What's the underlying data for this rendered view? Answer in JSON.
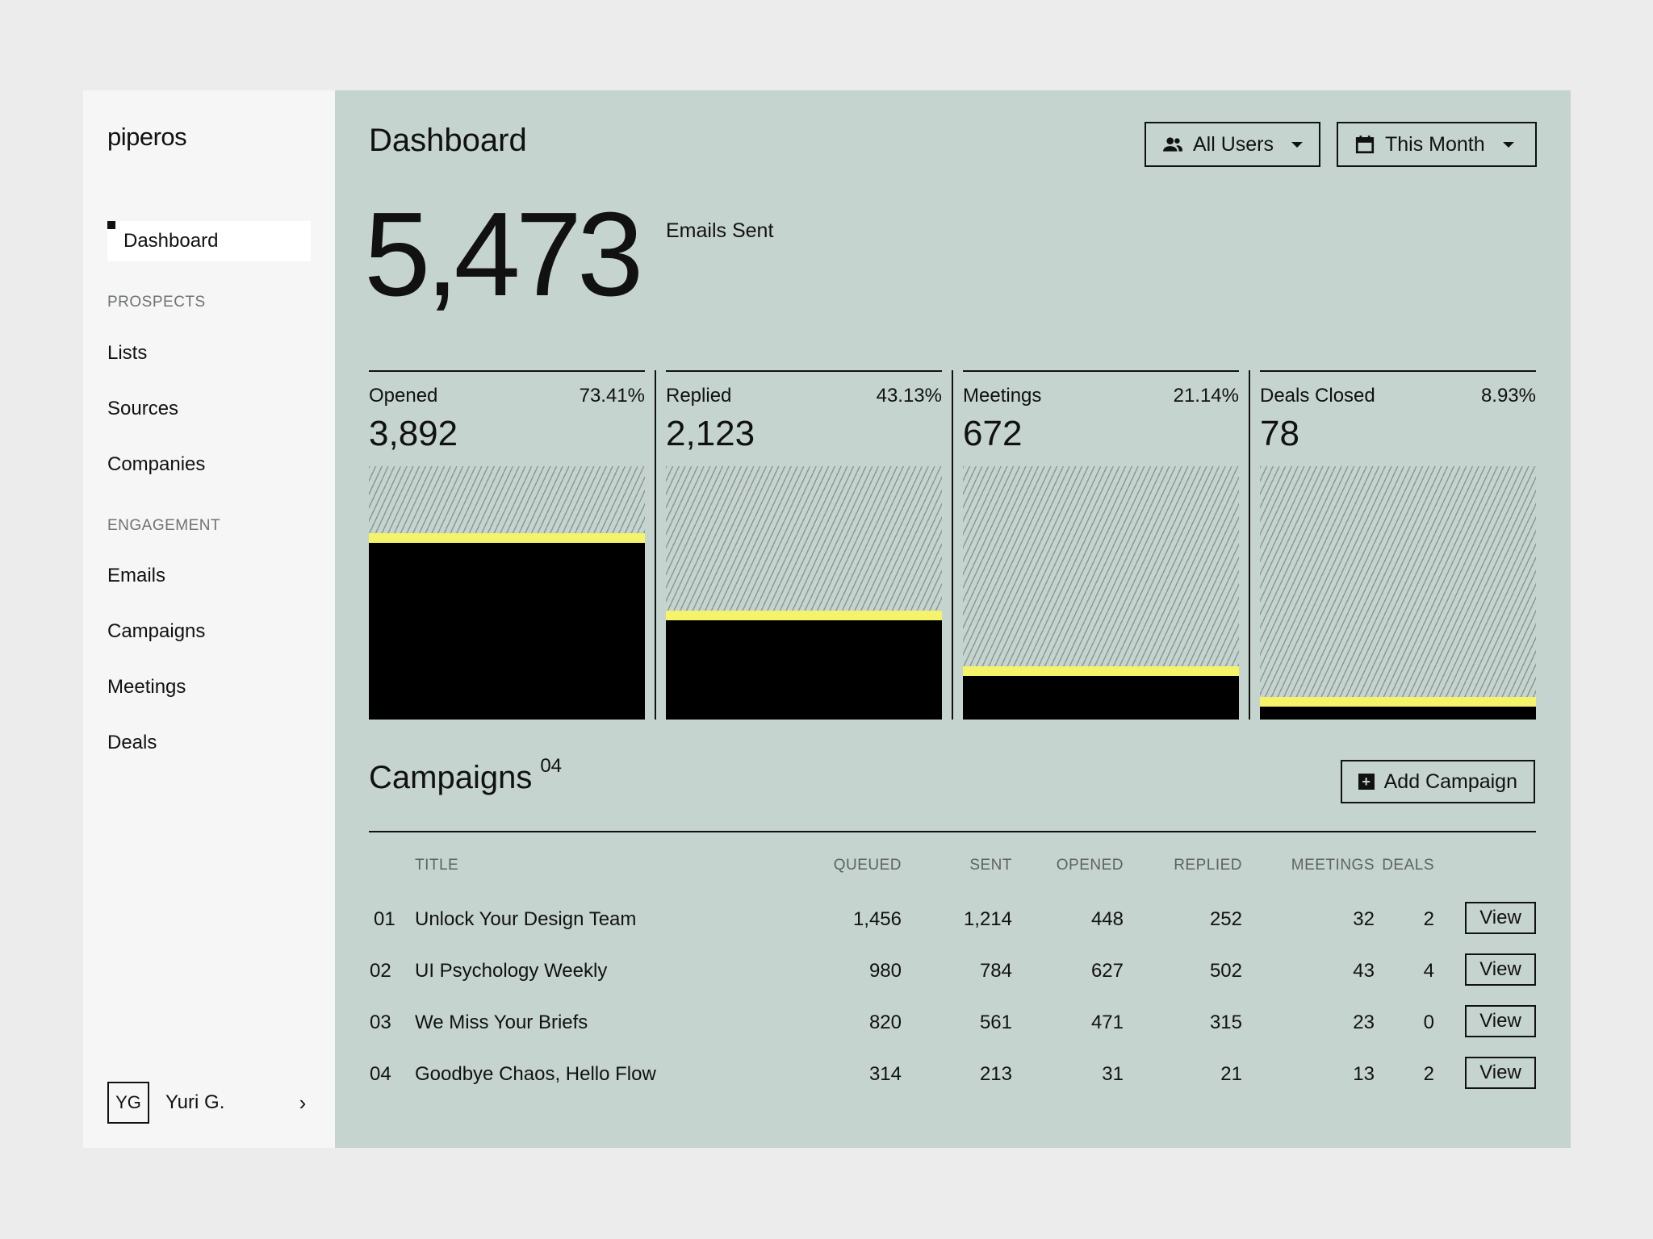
{
  "app": {
    "logo": "piperos"
  },
  "sidebar": {
    "active": "Dashboard",
    "sections": [
      {
        "title": "PROSPECTS",
        "items": [
          "Lists",
          "Sources",
          "Companies"
        ]
      },
      {
        "title": "ENGAGEMENT",
        "items": [
          "Emails",
          "Campaigns",
          "Meetings",
          "Deals"
        ]
      }
    ],
    "user": {
      "initials": "YG",
      "name": "Yuri G.",
      "chevron": "›"
    }
  },
  "header": {
    "title": "Dashboard",
    "users_filter": "All Users",
    "period_filter": "This Month"
  },
  "summary": {
    "value": "5,473",
    "label": "Emails Sent"
  },
  "funnel": [
    {
      "label": "Opened",
      "pct": "73.41%",
      "value": "3,892",
      "fraction": 0.7341
    },
    {
      "label": "Replied",
      "pct": "43.13%",
      "value": "2,123",
      "fraction": 0.4313
    },
    {
      "label": "Meetings",
      "pct": "21.14%",
      "value": "672",
      "fraction": 0.2114
    },
    {
      "label": "Deals Closed",
      "pct": "8.93%",
      "value": "78",
      "fraction": 0.0893
    }
  ],
  "colors": {
    "accent": "#f4f36a",
    "panel": "#c5d4cf",
    "sidebar": "#f5f6f5"
  },
  "campaigns": {
    "title": "Campaigns",
    "count": "04",
    "add_label": "Add Campaign",
    "columns": [
      "TITLE",
      "QUEUED",
      "SENT",
      "OPENED",
      "REPLIED",
      "MEETINGS",
      "DEALS"
    ],
    "rows": [
      {
        "no": "01",
        "title": "Unlock Your Design Team",
        "queued": "1,456",
        "sent": "1,214",
        "opened": "448",
        "replied": "252",
        "meetings": "32",
        "deals": "2",
        "action": "View"
      },
      {
        "no": "02",
        "title": "UI Psychology Weekly",
        "queued": "980",
        "sent": "784",
        "opened": "627",
        "replied": "502",
        "meetings": "43",
        "deals": "4",
        "action": "View"
      },
      {
        "no": "03",
        "title": "We Miss Your Briefs",
        "queued": "820",
        "sent": "561",
        "opened": "471",
        "replied": "315",
        "meetings": "23",
        "deals": "0",
        "action": "View"
      },
      {
        "no": "04",
        "title": "Goodbye Chaos, Hello Flow",
        "queued": "314",
        "sent": "213",
        "opened": "31",
        "replied": "21",
        "meetings": "13",
        "deals": "2",
        "action": "View"
      }
    ]
  }
}
